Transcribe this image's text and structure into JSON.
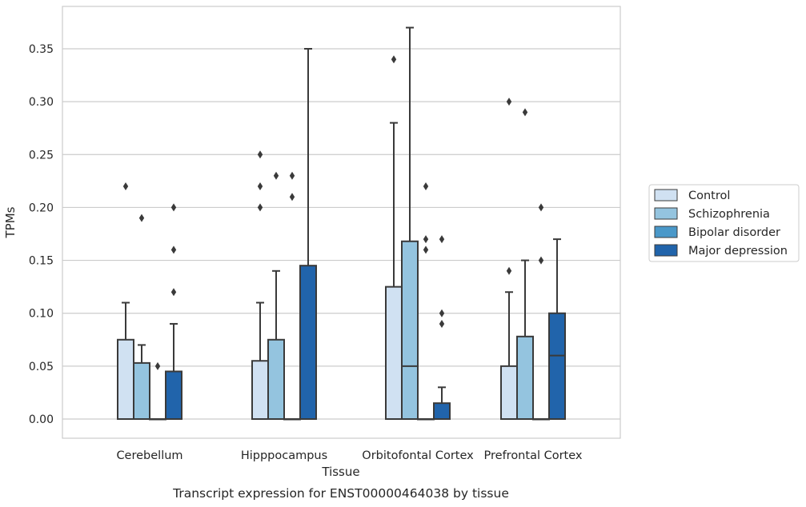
{
  "chart_data": {
    "type": "boxplot",
    "title": "",
    "caption": "Transcript expression for ENST00000464038 by tissue",
    "xlabel": "Tissue",
    "ylabel": "TPMs",
    "ylim": [
      -0.018,
      0.388
    ],
    "yticks": [
      "0.00",
      "0.05",
      "0.10",
      "0.15",
      "0.20",
      "0.25",
      "0.30",
      "0.35"
    ],
    "grid": "horizontal",
    "legend_position": "right",
    "categories": [
      "Cerebellum",
      "Hipppocampus",
      "Orbitofontal Cortex",
      "Prefrontal Cortex"
    ],
    "series": [
      {
        "name": "Control",
        "color": "#d0e1f2",
        "boxes": [
          {
            "q1": 0,
            "median": 0,
            "q3": 0.075,
            "whisker_low": 0,
            "whisker_high": 0.11,
            "outliers": [
              0.22
            ]
          },
          {
            "q1": 0,
            "median": 0,
            "q3": 0.055,
            "whisker_low": 0,
            "whisker_high": 0.11,
            "outliers": [
              0.2,
              0.22,
              0.25
            ]
          },
          {
            "q1": 0,
            "median": 0,
            "q3": 0.125,
            "whisker_low": 0,
            "whisker_high": 0.28,
            "outliers": [
              0.34
            ]
          },
          {
            "q1": 0,
            "median": 0,
            "q3": 0.05,
            "whisker_low": 0,
            "whisker_high": 0.12,
            "outliers": [
              0.14,
              0.3
            ]
          }
        ]
      },
      {
        "name": "Schizophrenia",
        "color": "#94c4df",
        "boxes": [
          {
            "q1": 0,
            "median": 0,
            "q3": 0.053,
            "whisker_low": 0,
            "whisker_high": 0.07,
            "outliers": [
              0.19
            ]
          },
          {
            "q1": 0,
            "median": 0,
            "q3": 0.075,
            "whisker_low": 0,
            "whisker_high": 0.14,
            "outliers": [
              0.23
            ]
          },
          {
            "q1": 0,
            "median": 0.05,
            "q3": 0.168,
            "whisker_low": 0,
            "whisker_high": 0.37,
            "outliers": []
          },
          {
            "q1": 0,
            "median": 0,
            "q3": 0.078,
            "whisker_low": 0,
            "whisker_high": 0.15,
            "outliers": [
              0.29
            ]
          }
        ]
      },
      {
        "name": "Bipolar disorder",
        "color": "#4a98c9",
        "boxes": [
          {
            "q1": 0,
            "median": 0,
            "q3": 0,
            "whisker_low": 0,
            "whisker_high": 0,
            "outliers": [
              0.05
            ]
          },
          {
            "q1": 0,
            "median": 0,
            "q3": 0,
            "whisker_low": 0,
            "whisker_high": 0,
            "outliers": [
              0.21,
              0.23
            ]
          },
          {
            "q1": 0,
            "median": 0,
            "q3": 0,
            "whisker_low": 0,
            "whisker_high": 0,
            "outliers": [
              0.16,
              0.17,
              0.22
            ]
          },
          {
            "q1": 0,
            "median": 0,
            "q3": 0,
            "whisker_low": 0,
            "whisker_high": 0,
            "outliers": [
              0.15,
              0.2
            ]
          }
        ]
      },
      {
        "name": "Major depression",
        "color": "#2164ab",
        "boxes": [
          {
            "q1": 0,
            "median": 0,
            "q3": 0.045,
            "whisker_low": 0,
            "whisker_high": 0.09,
            "outliers": [
              0.12,
              0.16,
              0.2
            ]
          },
          {
            "q1": 0,
            "median": 0,
            "q3": 0.145,
            "whisker_low": 0,
            "whisker_high": 0.35,
            "outliers": []
          },
          {
            "q1": 0,
            "median": 0,
            "q3": 0.015,
            "whisker_low": 0,
            "whisker_high": 0.03,
            "outliers": [
              0.09,
              0.1,
              0.17
            ]
          },
          {
            "q1": 0,
            "median": 0.06,
            "q3": 0.1,
            "whisker_low": 0,
            "whisker_high": 0.17,
            "outliers": []
          }
        ]
      }
    ]
  }
}
